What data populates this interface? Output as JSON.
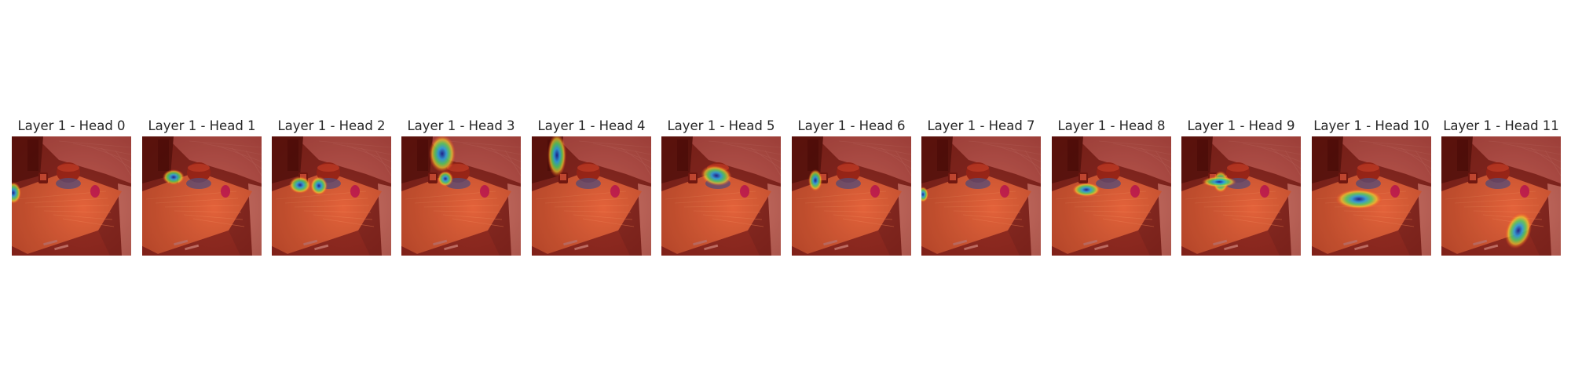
{
  "figure": {
    "panels": [
      {
        "title": "Layer 1 - Head 0",
        "hotspot": "left-edge"
      },
      {
        "title": "Layer 1 - Head 1",
        "hotspot": "left-jar"
      },
      {
        "title": "Layer 1 - Head 2",
        "hotspot": "jar-and-blue-block"
      },
      {
        "title": "Layer 1 - Head 3",
        "hotspot": "top-column"
      },
      {
        "title": "Layer 1 - Head 4",
        "hotspot": "upper-left-column"
      },
      {
        "title": "Layer 1 - Head 5",
        "hotspot": "blue-plate"
      },
      {
        "title": "Layer 1 - Head 6",
        "hotspot": "left-jar-narrow"
      },
      {
        "title": "Layer 1 - Head 7",
        "hotspot": "left-edge-faint"
      },
      {
        "title": "Layer 1 - Head 8",
        "hotspot": "counter-center"
      },
      {
        "title": "Layer 1 - Head 9",
        "hotspot": "cross-near-jars"
      },
      {
        "title": "Layer 1 - Head 10",
        "hotspot": "counter-middle"
      },
      {
        "title": "Layer 1 - Head 11",
        "hotspot": "bottom-right"
      }
    ]
  }
}
